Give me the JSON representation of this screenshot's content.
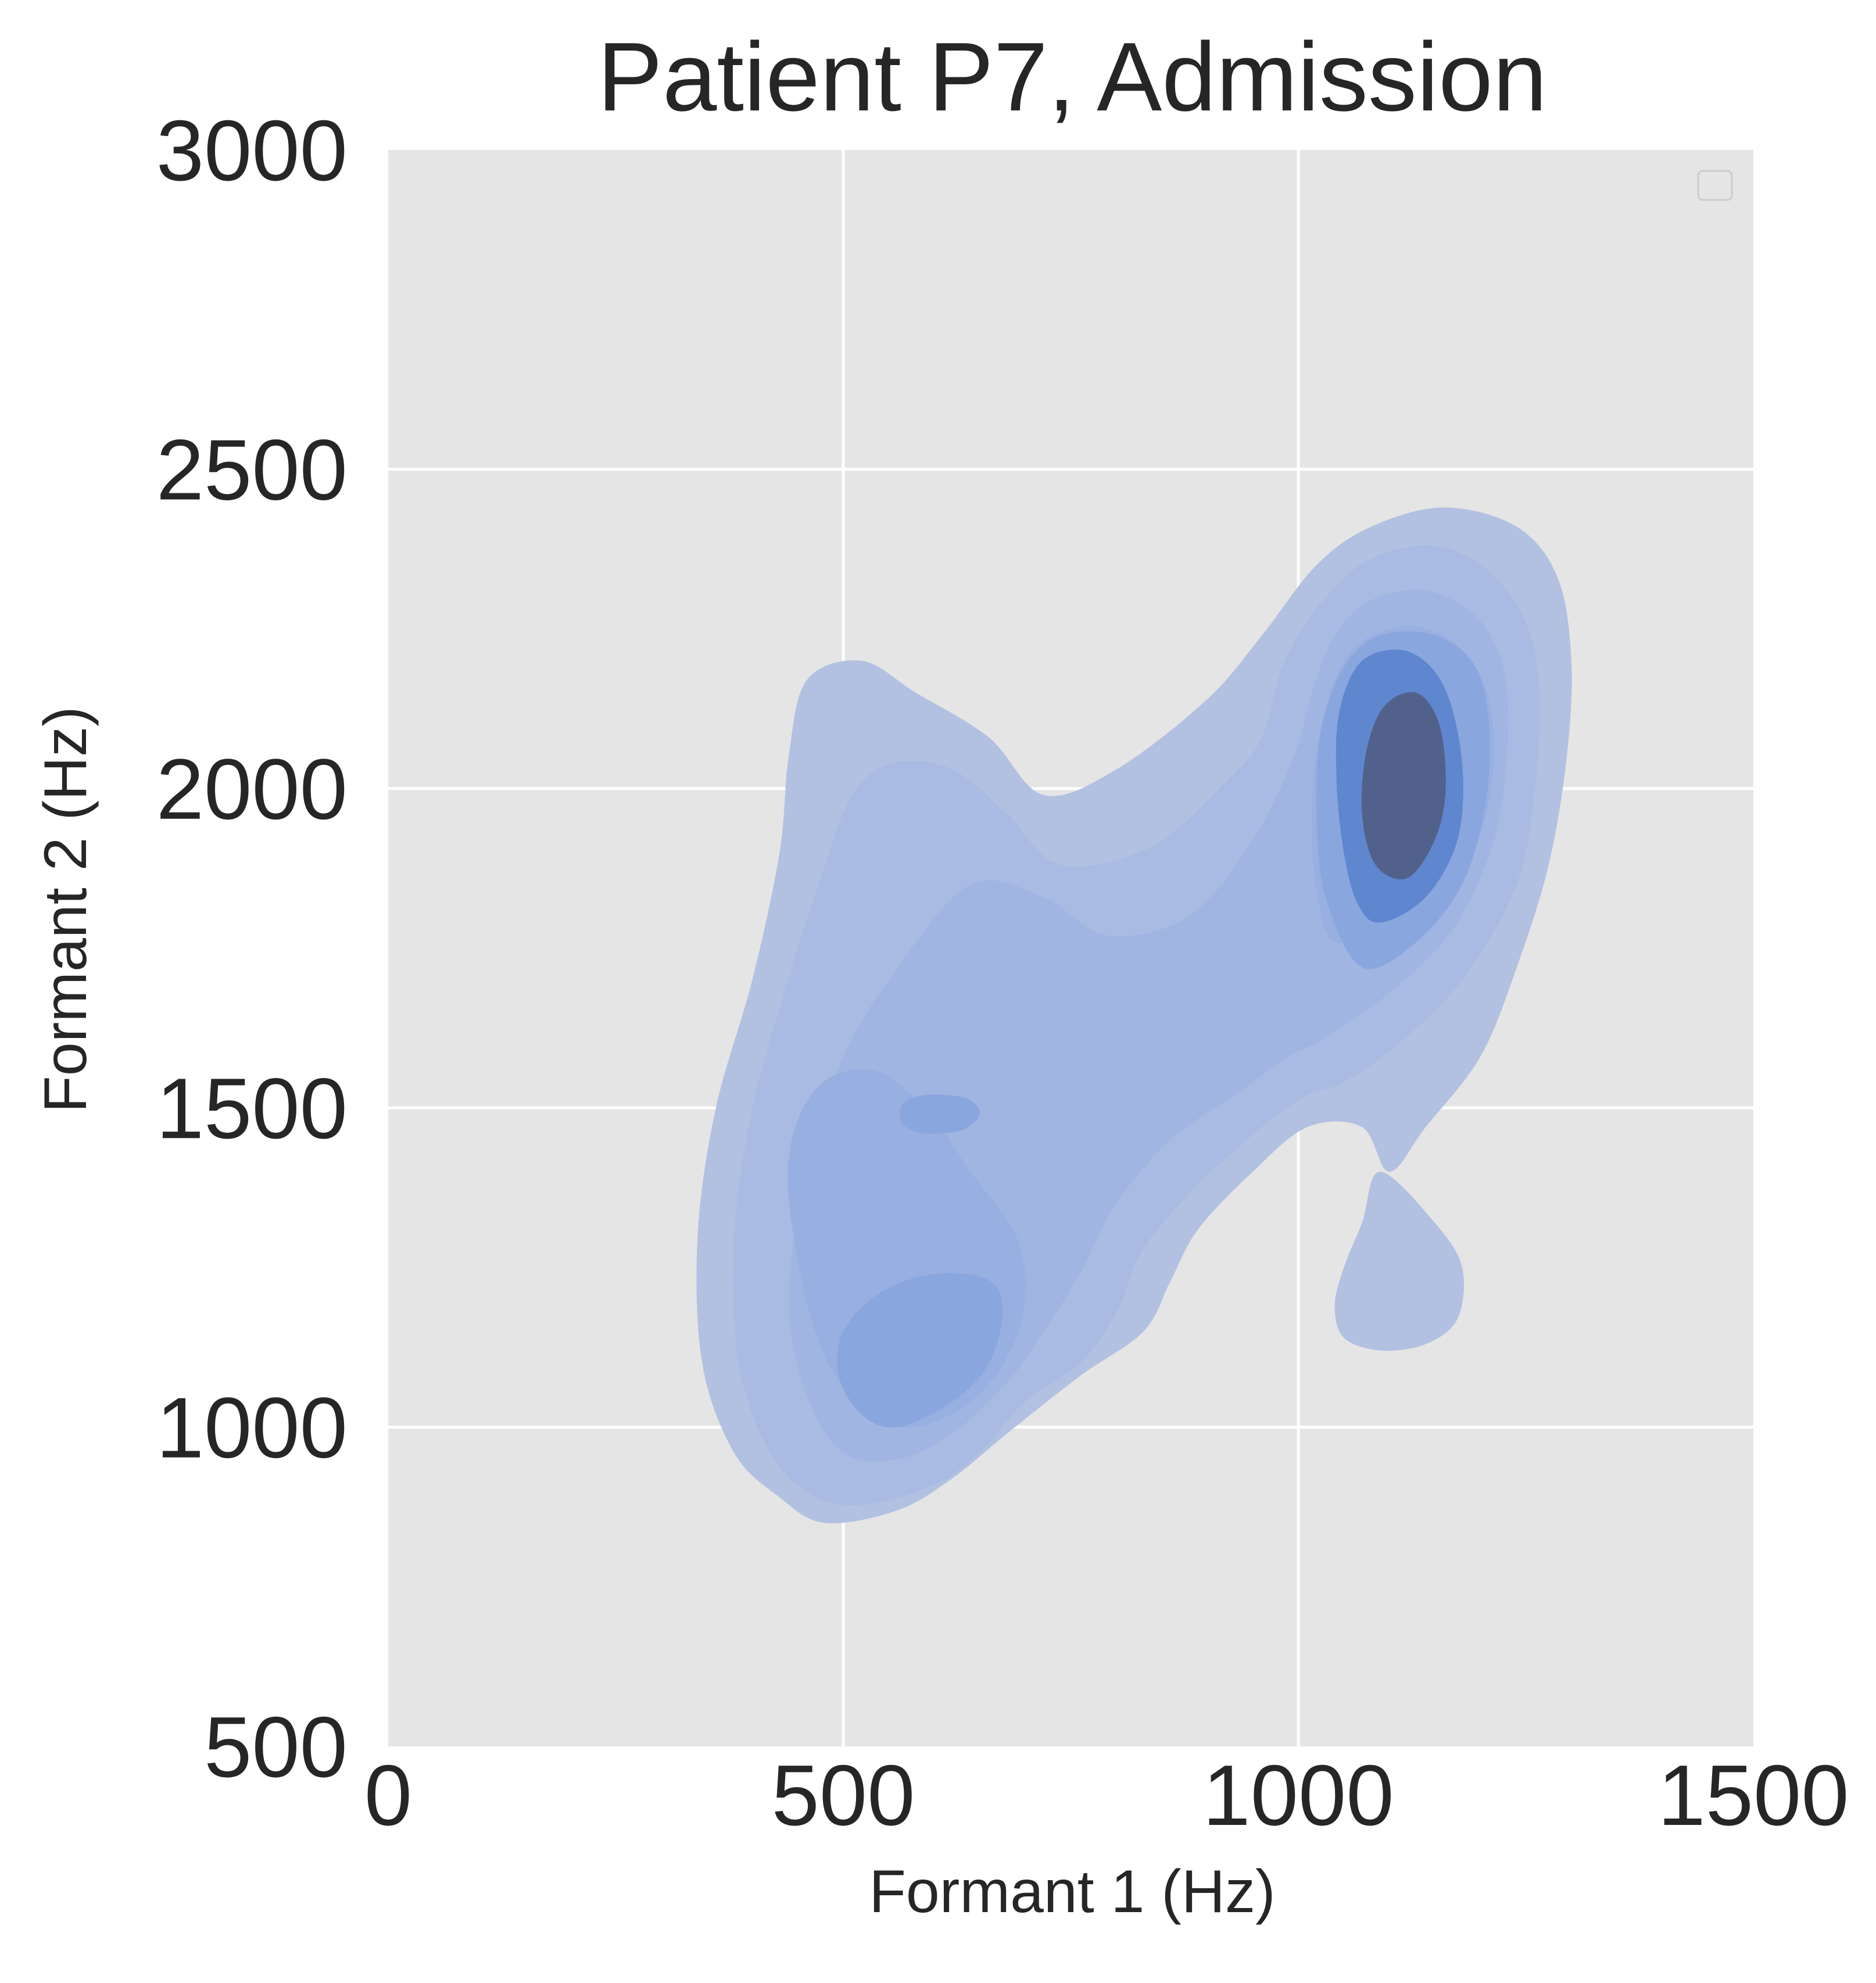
{
  "chart_data": {
    "type": "kde-contour",
    "title": "Patient P7, Admission",
    "xlabel": "Formant 1 (Hz)",
    "ylabel": "Formant 2 (Hz)",
    "xlim": [
      0,
      1500
    ],
    "ylim": [
      500,
      3000
    ],
    "xticks": [
      0,
      500,
      1000,
      1500
    ],
    "xtick_labels": [
      "0",
      "500",
      "1000",
      "1500"
    ],
    "yticks": [
      500,
      1000,
      1500,
      2000,
      2500,
      3000
    ],
    "ytick_labels": [
      "500",
      "1000",
      "1500",
      "2000",
      "2500",
      "3000"
    ],
    "grid": true,
    "legend": {
      "placement": "top-right",
      "entries": []
    },
    "colors": {
      "background": "#e5e5e5",
      "grid": "#ffffff",
      "levels": [
        "#b2c1e1",
        "#a9bbe2",
        "#a1b5e2",
        "#98afe1",
        "#8aa6df",
        "#5f87d0",
        "#52618b"
      ]
    },
    "density_peaks": [
      {
        "name": "peak-upper-right",
        "x": 1140,
        "y": 1990,
        "level": "highest"
      },
      {
        "name": "peak-lower-left",
        "x": 570,
        "y": 1100,
        "level": "medium"
      },
      {
        "name": "peak-mid-left",
        "x": 600,
        "y": 1490,
        "level": "medium"
      }
    ],
    "contours": [
      {
        "name": "contour-level-1",
        "level": 1,
        "regions": [
          {
            "points": [
              [
                1100,
                1400
              ],
              [
                1140,
                1470
              ],
              [
                1200,
                1580
              ],
              [
                1240,
                1720
              ],
              [
                1275,
                1880
              ],
              [
                1295,
                2050
              ],
              [
                1300,
                2200
              ],
              [
                1285,
                2330
              ],
              [
                1240,
                2410
              ],
              [
                1160,
                2440
              ],
              [
                1080,
                2410
              ],
              [
                1020,
                2350
              ],
              [
                960,
                2240
              ],
              [
                900,
                2140
              ],
              [
                800,
                2030
              ],
              [
                720,
                1990
              ],
              [
                660,
                2080
              ],
              [
                580,
                2150
              ],
              [
                520,
                2200
              ],
              [
                460,
                2170
              ],
              [
                440,
                2050
              ],
              [
                430,
                1900
              ],
              [
                400,
                1700
              ],
              [
                360,
                1500
              ],
              [
                340,
                1300
              ],
              [
                345,
                1100
              ],
              [
                380,
                960
              ],
              [
                430,
                890
              ],
              [
                480,
                850
              ],
              [
                560,
                870
              ],
              [
                620,
                920
              ],
              [
                680,
                990
              ],
              [
                760,
                1080
              ],
              [
                830,
                1150
              ],
              [
                860,
                1230
              ],
              [
                890,
                1310
              ],
              [
                950,
                1400
              ],
              [
                1010,
                1470
              ],
              [
                1070,
                1470
              ]
            ]
          },
          {
            "points": [
              [
                1090,
                1400
              ],
              [
                1150,
                1320
              ],
              [
                1180,
                1250
              ],
              [
                1175,
                1170
              ],
              [
                1140,
                1130
              ],
              [
                1090,
                1120
              ],
              [
                1050,
                1140
              ],
              [
                1040,
                1190
              ],
              [
                1050,
                1250
              ],
              [
                1070,
                1320
              ]
            ]
          }
        ]
      },
      {
        "name": "contour-level-2",
        "level": 2,
        "regions": [
          {
            "points": [
              [
                1050,
                1540
              ],
              [
                1110,
                1600
              ],
              [
                1180,
                1700
              ],
              [
                1240,
                1850
              ],
              [
                1260,
                2000
              ],
              [
                1265,
                2150
              ],
              [
                1250,
                2260
              ],
              [
                1210,
                2340
              ],
              [
                1150,
                2380
              ],
              [
                1080,
                2360
              ],
              [
                1030,
                2300
              ],
              [
                985,
                2200
              ],
              [
                960,
                2080
              ],
              [
                920,
                2010
              ],
              [
                840,
                1910
              ],
              [
                740,
                1880
              ],
              [
                680,
                1960
              ],
              [
                620,
                2030
              ],
              [
                555,
                2040
              ],
              [
                510,
                1990
              ],
              [
                475,
                1860
              ],
              [
                435,
                1680
              ],
              [
                400,
                1500
              ],
              [
                380,
                1300
              ],
              [
                385,
                1100
              ],
              [
                420,
                960
              ],
              [
                470,
                890
              ],
              [
                530,
                880
              ],
              [
                600,
                910
              ],
              [
                650,
                960
              ],
              [
                700,
                1040
              ],
              [
                760,
                1100
              ],
              [
                800,
                1180
              ],
              [
                830,
                1280
              ],
              [
                890,
                1380
              ],
              [
                960,
                1470
              ],
              [
                1010,
                1520
              ]
            ]
          }
        ]
      },
      {
        "name": "contour-level-3",
        "level": 3,
        "regions": [
          {
            "points": [
              [
                1030,
                1610
              ],
              [
                1100,
                1680
              ],
              [
                1170,
                1780
              ],
              [
                1215,
                1920
              ],
              [
                1230,
                2070
              ],
              [
                1225,
                2190
              ],
              [
                1195,
                2270
              ],
              [
                1140,
                2310
              ],
              [
                1080,
                2295
              ],
              [
                1040,
                2240
              ],
              [
                1015,
                2150
              ],
              [
                995,
                2050
              ],
              [
                950,
                1920
              ],
              [
                880,
                1800
              ],
              [
                790,
                1770
              ],
              [
                720,
                1830
              ],
              [
                640,
                1850
              ],
              [
                560,
                1720
              ],
              [
                500,
                1580
              ],
              [
                460,
                1400
              ],
              [
                440,
                1200
              ],
              [
                460,
                1050
              ],
              [
                500,
                960
              ],
              [
                560,
                950
              ],
              [
                620,
                990
              ],
              [
                680,
                1070
              ],
              [
                720,
                1150
              ],
              [
                760,
                1240
              ],
              [
                800,
                1350
              ],
              [
                860,
                1450
              ],
              [
                940,
                1530
              ],
              [
                990,
                1580
              ]
            ]
          }
        ]
      },
      {
        "name": "contour-level-4",
        "level": 4,
        "regions": [
          {
            "points": [
              [
                1040,
                1760
              ],
              [
                1100,
                1780
              ],
              [
                1160,
                1830
              ],
              [
                1200,
                1930
              ],
              [
                1215,
                2050
              ],
              [
                1205,
                2160
              ],
              [
                1170,
                2230
              ],
              [
                1120,
                2255
              ],
              [
                1070,
                2230
              ],
              [
                1040,
                2170
              ],
              [
                1020,
                2060
              ],
              [
                1015,
                1940
              ],
              [
                1020,
                1840
              ]
            ]
          },
          {
            "points": [
              [
                580,
                1000
              ],
              [
                640,
                1040
              ],
              [
                680,
                1110
              ],
              [
                700,
                1200
              ],
              [
                690,
                1300
              ],
              [
                640,
                1400
              ],
              [
                590,
                1500
              ],
              [
                530,
                1560
              ],
              [
                470,
                1530
              ],
              [
                440,
                1420
              ],
              [
                450,
                1260
              ],
              [
                480,
                1110
              ],
              [
                530,
                1020
              ]
            ]
          }
        ]
      },
      {
        "name": "contour-level-5",
        "level": 5,
        "regions": [
          {
            "points": [
              [
                1070,
                1720
              ],
              [
                1130,
                1760
              ],
              [
                1180,
                1850
              ],
              [
                1205,
                1970
              ],
              [
                1210,
                2090
              ],
              [
                1195,
                2190
              ],
              [
                1150,
                2240
              ],
              [
                1090,
                2240
              ],
              [
                1050,
                2190
              ],
              [
                1025,
                2090
              ],
              [
                1020,
                1960
              ],
              [
                1030,
                1830
              ]
            ]
          },
          {
            "points": [
              [
                560,
                1000
              ],
              [
                620,
                1040
              ],
              [
                660,
                1100
              ],
              [
                675,
                1180
              ],
              [
                660,
                1230
              ],
              [
                600,
                1240
              ],
              [
                540,
                1210
              ],
              [
                500,
                1150
              ],
              [
                495,
                1080
              ],
              [
                520,
                1020
              ]
            ]
          },
          {
            "points": [
              [
                590,
                1460
              ],
              [
                630,
                1465
              ],
              [
                650,
                1490
              ],
              [
                635,
                1515
              ],
              [
                590,
                1520
              ],
              [
                565,
                1505
              ],
              [
                565,
                1475
              ]
            ]
          }
        ]
      },
      {
        "name": "contour-level-6",
        "level": 6,
        "regions": [
          {
            "points": [
              [
                1090,
                1790
              ],
              [
                1140,
                1830
              ],
              [
                1175,
                1920
              ],
              [
                1180,
                2040
              ],
              [
                1160,
                2160
              ],
              [
                1120,
                2215
              ],
              [
                1070,
                2200
              ],
              [
                1045,
                2120
              ],
              [
                1042,
                2010
              ],
              [
                1050,
                1900
              ],
              [
                1065,
                1820
              ]
            ]
          }
        ]
      },
      {
        "name": "contour-level-7",
        "level": 7,
        "regions": [
          {
            "points": [
              [
                1120,
                1860
              ],
              [
                1150,
                1920
              ],
              [
                1162,
                2000
              ],
              [
                1155,
                2100
              ],
              [
                1130,
                2150
              ],
              [
                1095,
                2130
              ],
              [
                1075,
                2060
              ],
              [
                1070,
                1960
              ],
              [
                1085,
                1880
              ]
            ]
          }
        ]
      }
    ]
  }
}
